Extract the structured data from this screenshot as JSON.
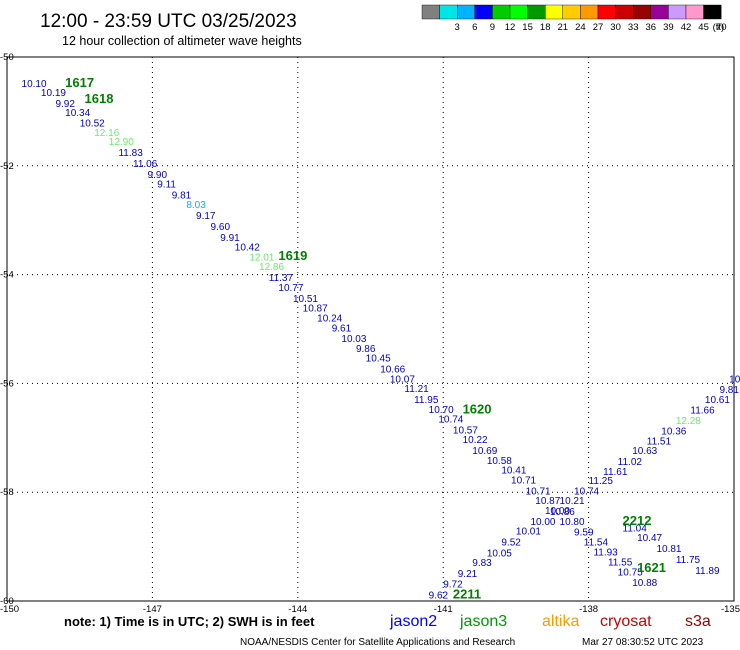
{
  "header": {
    "title": "12:00 - 23:59 UTC 03/25/2023",
    "subtitle": "12 hour collection of altimeter wave heights"
  },
  "legend": {
    "unit": "(ft)",
    "swatches": [
      {
        "label": "",
        "color": "#808080"
      },
      {
        "label": "3",
        "color": "#00e6e6"
      },
      {
        "label": "6",
        "color": "#00b4ff"
      },
      {
        "label": "9",
        "color": "#0000ff"
      },
      {
        "label": "12",
        "color": "#00cc00"
      },
      {
        "label": "15",
        "color": "#00ff00"
      },
      {
        "label": "18",
        "color": "#009900"
      },
      {
        "label": "21",
        "color": "#ffff00"
      },
      {
        "label": "24",
        "color": "#ffcc00"
      },
      {
        "label": "27",
        "color": "#ff9900"
      },
      {
        "label": "30",
        "color": "#ff0000"
      },
      {
        "label": "33",
        "color": "#cc0000"
      },
      {
        "label": "36",
        "color": "#990000"
      },
      {
        "label": "39",
        "color": "#990099"
      },
      {
        "label": "42",
        "color": "#cc99ff"
      },
      {
        "label": "45",
        "color": "#ff99cc"
      },
      {
        "label": "70",
        "color": "#000000"
      }
    ]
  },
  "axes": {
    "lon_ticks": [
      "-150",
      "-147",
      "-144",
      "-141",
      "-138",
      "-135"
    ],
    "lat_ticks": [
      "-50",
      "-52",
      "-54",
      "-56",
      "-58",
      "-60"
    ]
  },
  "chart_data": {
    "type": "scatter",
    "xlim": [
      -150,
      -135
    ],
    "ylim": [
      -60,
      -50
    ],
    "unit": "ft",
    "tracks": [
      {
        "satellite": "jason2",
        "points": [
          {
            "lon": -149.7,
            "lat": -50.55,
            "value": "10.10",
            "color": "#0000cc"
          },
          {
            "lon": -149.3,
            "lat": -50.72,
            "value": "10.19",
            "color": "#0000cc"
          },
          {
            "lon": -149.0,
            "lat": -50.92,
            "value": "9.92",
            "color": "#0000cc"
          },
          {
            "lon": -148.8,
            "lat": -51.08,
            "value": "10.34",
            "color": "#0000cc"
          },
          {
            "lon": -148.5,
            "lat": -51.28,
            "value": "10.52",
            "color": "#0000cc"
          },
          {
            "lon": -148.2,
            "lat": -51.45,
            "value": "12.16",
            "color": "#66ee66"
          },
          {
            "lon": -147.9,
            "lat": -51.62,
            "value": "12.90",
            "color": "#66ee66"
          },
          {
            "lon": -147.7,
            "lat": -51.82,
            "value": "11.83",
            "color": "#0000cc"
          },
          {
            "lon": -147.4,
            "lat": -52.02,
            "value": "11.06",
            "color": "#0000cc"
          },
          {
            "lon": -147.1,
            "lat": -52.22,
            "value": "9.90",
            "color": "#0000cc"
          },
          {
            "lon": -146.9,
            "lat": -52.4,
            "value": "9.11",
            "color": "#0000cc"
          },
          {
            "lon": -146.6,
            "lat": -52.6,
            "value": "9.81",
            "color": "#0000cc"
          },
          {
            "lon": -146.3,
            "lat": -52.78,
            "value": "8.03",
            "color": "#00b4ff"
          },
          {
            "lon": -146.1,
            "lat": -52.98,
            "value": "9.17",
            "color": "#0000cc"
          },
          {
            "lon": -145.8,
            "lat": -53.18,
            "value": "9.60",
            "color": "#0000cc"
          },
          {
            "lon": -145.6,
            "lat": -53.38,
            "value": "9.91",
            "color": "#0000cc"
          },
          {
            "lon": -145.3,
            "lat": -53.56,
            "value": "10.42",
            "color": "#0000cc"
          },
          {
            "lon": -145.0,
            "lat": -53.74,
            "value": "12.01",
            "color": "#66ee66"
          },
          {
            "lon": -144.8,
            "lat": -53.92,
            "value": "12.86",
            "color": "#66ee66"
          },
          {
            "lon": -144.6,
            "lat": -54.12,
            "value": "11.37",
            "color": "#0000cc"
          },
          {
            "lon": -144.4,
            "lat": -54.3,
            "value": "10.77",
            "color": "#0000cc"
          },
          {
            "lon": -144.1,
            "lat": -54.5,
            "value": "10.51",
            "color": "#0000cc"
          },
          {
            "lon": -143.9,
            "lat": -54.68,
            "value": "10.87",
            "color": "#0000cc"
          },
          {
            "lon": -143.6,
            "lat": -54.86,
            "value": "10.24",
            "color": "#0000cc"
          },
          {
            "lon": -143.3,
            "lat": -55.05,
            "value": "9.61",
            "color": "#0000cc"
          },
          {
            "lon": -143.1,
            "lat": -55.24,
            "value": "10.03",
            "color": "#0000cc"
          },
          {
            "lon": -142.8,
            "lat": -55.42,
            "value": "9.86",
            "color": "#0000cc"
          },
          {
            "lon": -142.6,
            "lat": -55.6,
            "value": "10.45",
            "color": "#0000cc"
          },
          {
            "lon": -142.3,
            "lat": -55.8,
            "value": "10.66",
            "color": "#0000cc"
          },
          {
            "lon": -142.1,
            "lat": -55.98,
            "value": "10.07",
            "color": "#0000cc"
          },
          {
            "lon": -141.8,
            "lat": -56.16,
            "value": "11.21",
            "color": "#0000cc"
          },
          {
            "lon": -141.6,
            "lat": -56.36,
            "value": "11.95",
            "color": "#0000cc"
          },
          {
            "lon": -141.3,
            "lat": -56.54,
            "value": "10.70",
            "color": "#0000cc"
          },
          {
            "lon": -141.1,
            "lat": -56.72,
            "value": "10.74",
            "color": "#0000cc"
          },
          {
            "lon": -140.8,
            "lat": -56.92,
            "value": "10.57",
            "color": "#0000cc"
          },
          {
            "lon": -140.6,
            "lat": -57.1,
            "value": "10.22",
            "color": "#0000cc"
          },
          {
            "lon": -140.4,
            "lat": -57.3,
            "value": "10.69",
            "color": "#0000cc"
          },
          {
            "lon": -140.1,
            "lat": -57.48,
            "value": "10.58",
            "color": "#0000cc"
          },
          {
            "lon": -139.8,
            "lat": -57.66,
            "value": "10.41",
            "color": "#0000cc"
          },
          {
            "lon": -139.6,
            "lat": -57.84,
            "value": "10.71",
            "color": "#0000cc"
          },
          {
            "lon": -139.3,
            "lat": -58.04,
            "value": "10.71",
            "color": "#0000cc"
          },
          {
            "lon": -139.1,
            "lat": -58.22,
            "value": "10.87",
            "color": "#0000cc"
          },
          {
            "lon": -138.8,
            "lat": -58.42,
            "value": "10.86",
            "color": "#0000cc"
          },
          {
            "lon": -138.6,
            "lat": -58.6,
            "value": "10.80",
            "color": "#0000cc"
          },
          {
            "lon": -138.3,
            "lat": -58.8,
            "value": "9.59",
            "color": "#0000cc"
          },
          {
            "lon": -138.1,
            "lat": -58.98,
            "value": "11.54",
            "color": "#0000cc"
          },
          {
            "lon": -137.9,
            "lat": -59.16,
            "value": "11.93",
            "color": "#0000cc"
          },
          {
            "lon": -137.6,
            "lat": -59.35,
            "value": "11.55",
            "color": "#0000cc"
          },
          {
            "lon": -137.4,
            "lat": -59.53,
            "value": "10.75",
            "color": "#0000cc"
          },
          {
            "lon": -137.1,
            "lat": -59.72,
            "value": "10.88",
            "color": "#0000cc"
          }
        ],
        "time_labels": [
          {
            "lon": -148.8,
            "lat": -50.55,
            "text": "1617"
          },
          {
            "lon": -148.4,
            "lat": -50.85,
            "text": "1618"
          },
          {
            "lon": -144.4,
            "lat": -53.73,
            "text": "1619"
          },
          {
            "lon": -140.6,
            "lat": -56.55,
            "text": "1620"
          },
          {
            "lon": -137.0,
            "lat": -59.47,
            "text": "1621"
          }
        ]
      },
      {
        "satellite": "jason2",
        "points": [
          {
            "lon": -141.3,
            "lat": -59.95,
            "value": "9.62",
            "color": "#0000cc"
          },
          {
            "lon": -141.0,
            "lat": -59.75,
            "value": "9.72",
            "color": "#0000cc"
          },
          {
            "lon": -140.7,
            "lat": -59.56,
            "value": "9.21",
            "color": "#0000cc"
          },
          {
            "lon": -140.4,
            "lat": -59.36,
            "value": "9.83",
            "color": "#0000cc"
          },
          {
            "lon": -140.1,
            "lat": -59.18,
            "value": "10.05",
            "color": "#0000cc"
          },
          {
            "lon": -139.8,
            "lat": -58.98,
            "value": "9.52",
            "color": "#0000cc"
          },
          {
            "lon": -139.5,
            "lat": -58.78,
            "value": "10.01",
            "color": "#0000cc"
          },
          {
            "lon": -139.2,
            "lat": -58.6,
            "value": "10.00",
            "color": "#0000cc"
          },
          {
            "lon": -138.9,
            "lat": -58.4,
            "value": "10.00",
            "color": "#0000cc"
          },
          {
            "lon": -138.6,
            "lat": -58.22,
            "value": "10.21",
            "color": "#0000cc"
          },
          {
            "lon": -138.3,
            "lat": -58.04,
            "value": "10.74",
            "color": "#0000cc"
          },
          {
            "lon": -138.0,
            "lat": -57.85,
            "value": "11.25",
            "color": "#0000cc"
          },
          {
            "lon": -137.7,
            "lat": -57.68,
            "value": "11.61",
            "color": "#0000cc"
          },
          {
            "lon": -137.4,
            "lat": -57.5,
            "value": "11.02",
            "color": "#0000cc"
          },
          {
            "lon": -137.1,
            "lat": -57.3,
            "value": "10.63",
            "color": "#0000cc"
          },
          {
            "lon": -136.8,
            "lat": -57.12,
            "value": "11.51",
            "color": "#0000cc"
          },
          {
            "lon": -136.5,
            "lat": -56.94,
            "value": "10.36",
            "color": "#0000cc"
          },
          {
            "lon": -136.2,
            "lat": -56.75,
            "value": "12.28",
            "color": "#66ee66"
          },
          {
            "lon": -135.9,
            "lat": -56.55,
            "value": "11.66",
            "color": "#0000cc"
          },
          {
            "lon": -135.6,
            "lat": -56.36,
            "value": "10.61",
            "color": "#0000cc"
          },
          {
            "lon": -135.3,
            "lat": -56.18,
            "value": "9.81",
            "color": "#0000cc"
          },
          {
            "lon": -135.1,
            "lat": -55.98,
            "value": "10",
            "color": "#0000cc"
          }
        ],
        "time_labels": [
          {
            "lon": -140.8,
            "lat": -59.95,
            "text": "2211"
          },
          {
            "lon": -137.3,
            "lat": -58.6,
            "text": "2212"
          }
        ]
      },
      {
        "satellite": "jason2",
        "points": [
          {
            "lon": -137.3,
            "lat": -58.72,
            "value": "11.04",
            "color": "#0000cc"
          },
          {
            "lon": -137.0,
            "lat": -58.9,
            "value": "10.47",
            "color": "#0000cc"
          },
          {
            "lon": -136.6,
            "lat": -59.1,
            "value": "10.81",
            "color": "#0000cc"
          },
          {
            "lon": -136.2,
            "lat": -59.3,
            "value": "11.75",
            "color": "#0000cc"
          },
          {
            "lon": -135.8,
            "lat": -59.5,
            "value": "11.89",
            "color": "#0000cc"
          }
        ],
        "time_labels": []
      }
    ]
  },
  "notes": {
    "note": "note: 1) Time is in UTC; 2) SWH is in feet",
    "satellites": [
      {
        "name": "jason2",
        "color": "#0000ff"
      },
      {
        "name": "jason3",
        "color": "#009900"
      },
      {
        "name": "altika",
        "color": "#ff9900"
      },
      {
        "name": "cryosat",
        "color": "#cc0000"
      },
      {
        "name": "s3a",
        "color": "#990000"
      }
    ]
  },
  "footer": {
    "credit": "NOAA/NESDIS Center for Satellite Applications and Research",
    "timestamp": "Mar 27 08:30:52 UTC 2023"
  }
}
